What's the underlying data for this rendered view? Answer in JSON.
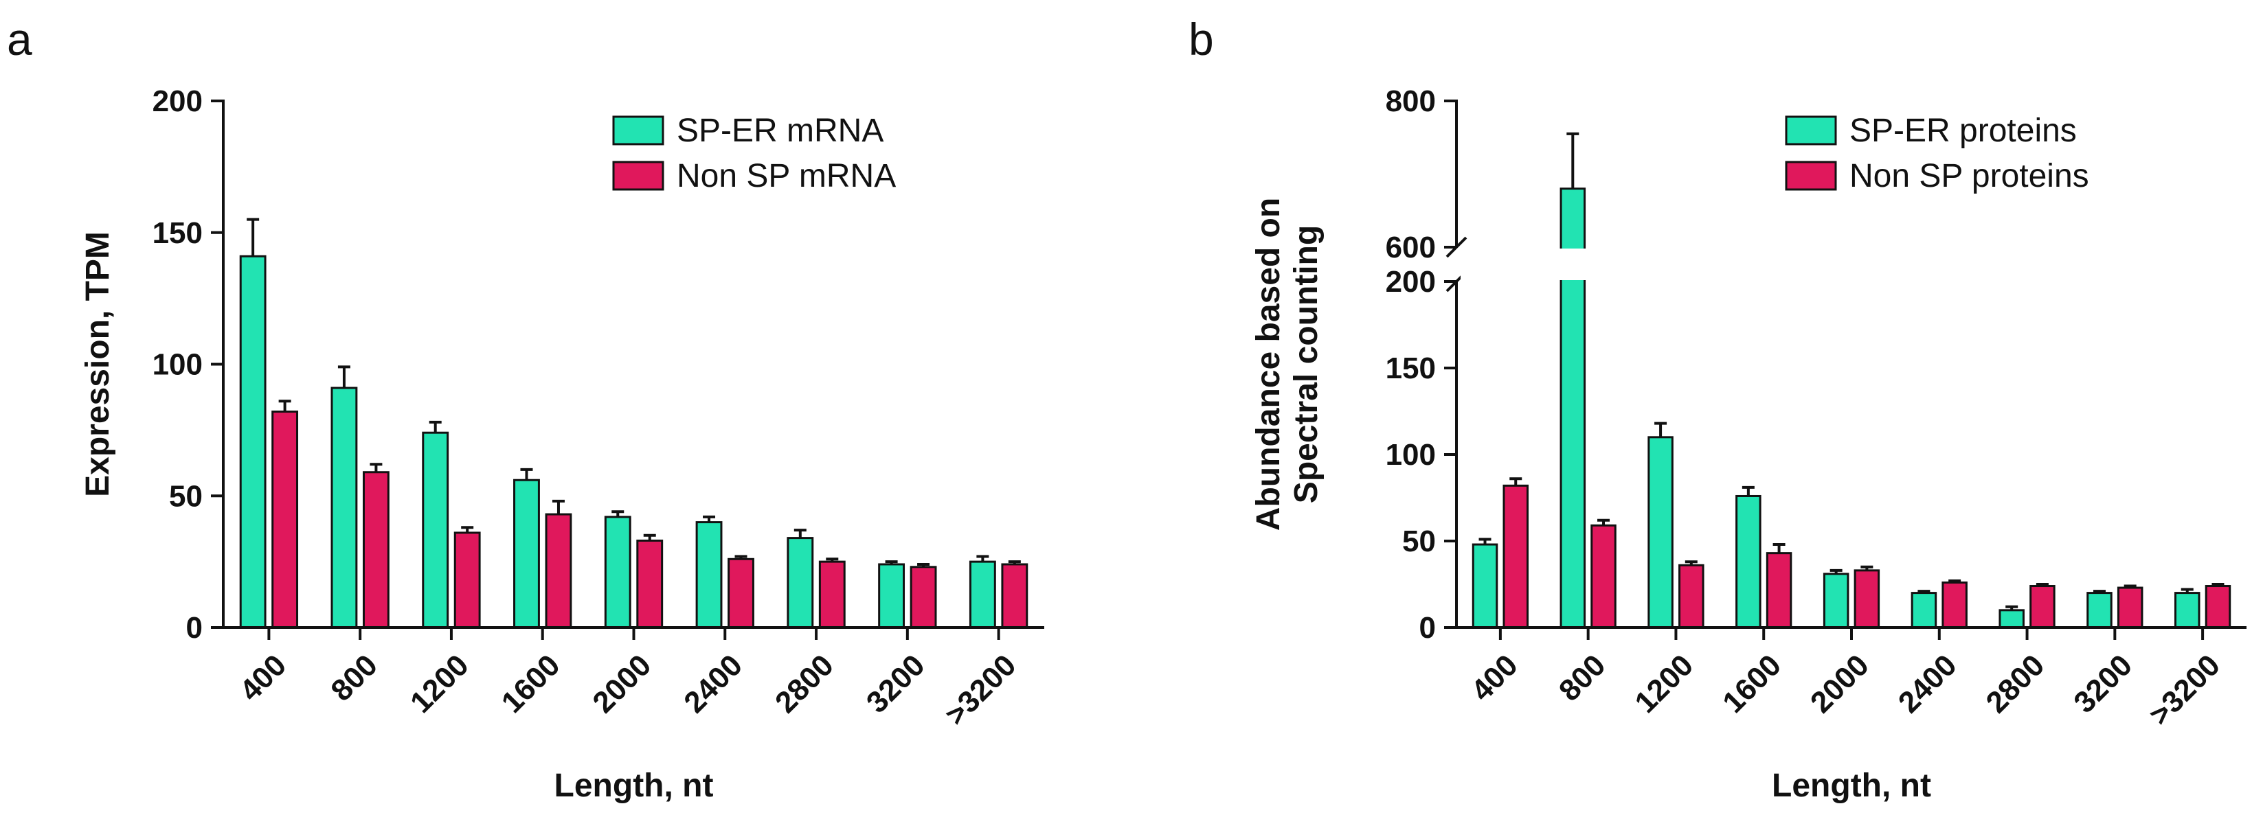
{
  "colors": {
    "sp_er": "#22e3b2",
    "non_sp": "#e0185c",
    "axis": "#111111"
  },
  "chart_data": [
    {
      "panel": "a",
      "type": "bar",
      "categories": [
        "400",
        "800",
        "1200",
        "1600",
        "2000",
        "2400",
        "2800",
        "3200",
        ">3200"
      ],
      "series": [
        {
          "name": "SP-ER mRNA",
          "color": "#22e3b2",
          "values": [
            141,
            91,
            74,
            56,
            42,
            40,
            34,
            24,
            25
          ],
          "errors": [
            14,
            8,
            4,
            4,
            2,
            2,
            3,
            1,
            2
          ]
        },
        {
          "name": "Non SP mRNA",
          "color": "#e0185c",
          "values": [
            82,
            59,
            36,
            43,
            33,
            26,
            25,
            23,
            24
          ],
          "errors": [
            4,
            3,
            2,
            5,
            2,
            1,
            1,
            1,
            1
          ]
        }
      ],
      "xlabel": "Length, nt",
      "ylabel": "Expression, TPM",
      "ylim": [
        0,
        200
      ],
      "yticks": [
        "0",
        "50",
        "100",
        "150",
        "200"
      ],
      "legend_position": "top-right"
    },
    {
      "panel": "b",
      "type": "bar",
      "broken_axis": true,
      "categories": [
        "400",
        "800",
        "1200",
        "1600",
        "2000",
        "2400",
        "2800",
        "3200",
        ">3200"
      ],
      "series": [
        {
          "name": "SP-ER proteins",
          "color": "#22e3b2",
          "values": [
            48,
            680,
            110,
            76,
            31,
            20,
            10,
            20,
            20
          ],
          "errors": [
            3,
            75,
            8,
            5,
            2,
            1,
            2,
            1,
            2
          ]
        },
        {
          "name": "Non SP proteins",
          "color": "#e0185c",
          "values": [
            82,
            59,
            36,
            43,
            33,
            26,
            24,
            23,
            24
          ],
          "errors": [
            4,
            3,
            2,
            5,
            2,
            1,
            1,
            1,
            1
          ]
        }
      ],
      "xlabel": "Length, nt",
      "ylabel": [
        "Abundance based on",
        "Spectral counting"
      ],
      "ylim_lower": [
        0,
        200
      ],
      "ylim_upper": [
        600,
        800
      ],
      "yticks_lower": [
        "0",
        "50",
        "100",
        "150",
        "200"
      ],
      "yticks_upper": [
        "600",
        "800"
      ],
      "legend_position": "top-right"
    }
  ],
  "panels": {
    "a": "a",
    "b": "b"
  }
}
